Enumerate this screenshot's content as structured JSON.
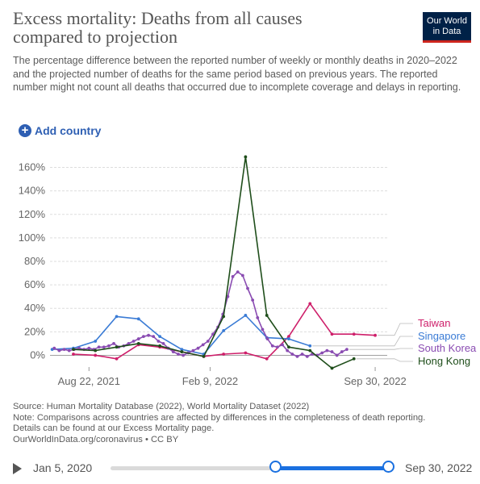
{
  "header": {
    "title": "Excess mortality: Deaths from all causes compared to projection",
    "subtitle": "The percentage difference between the reported number of weekly or monthly deaths in 2020–2022 and the projected number of deaths for the same period based on previous years. The reported number might not count all deaths that occurred due to incomplete coverage and delays in reporting.",
    "logo_line1": "Our World",
    "logo_line2": "in Data"
  },
  "controls": {
    "add_country_label": "Add country",
    "add_icon": "plus-circle-icon"
  },
  "chart_data": {
    "type": "line",
    "title": "Excess mortality: Deaths from all causes compared to projection",
    "ylim": [
      -10,
      170
    ],
    "yticks": [
      0,
      20,
      40,
      60,
      80,
      100,
      120,
      140,
      160
    ],
    "ytick_labels": [
      "0%",
      "20%",
      "40%",
      "60%",
      "80%",
      "100%",
      "120%",
      "140%",
      "160%"
    ],
    "xlim": [
      "2021-06-28",
      "2022-10-17"
    ],
    "xticks": [
      "2021-08-22",
      "2022-02-09",
      "2022-09-30"
    ],
    "xtick_labels": [
      "Aug 22, 2021",
      "Feb 9, 2022",
      "Sep 30, 2022"
    ],
    "grid": true,
    "legend_placement": "right",
    "series": [
      {
        "name": "Taiwan",
        "color": "#ce1f6a",
        "points": [
          [
            "2021-07-31",
            1
          ],
          [
            "2021-08-31",
            0
          ],
          [
            "2021-09-30",
            -3
          ],
          [
            "2021-10-31",
            9
          ],
          [
            "2021-11-30",
            7
          ],
          [
            "2021-12-31",
            3
          ],
          [
            "2022-01-31",
            -1
          ],
          [
            "2022-02-28",
            1
          ],
          [
            "2022-03-31",
            2
          ],
          [
            "2022-04-30",
            -3
          ],
          [
            "2022-05-31",
            16
          ],
          [
            "2022-06-30",
            44
          ],
          [
            "2022-07-31",
            18
          ],
          [
            "2022-08-31",
            18
          ],
          [
            "2022-09-30",
            17
          ]
        ]
      },
      {
        "name": "Singapore",
        "color": "#3a7bd5",
        "points": [
          [
            "2021-07-01",
            5
          ],
          [
            "2021-07-31",
            6
          ],
          [
            "2021-08-31",
            12
          ],
          [
            "2021-09-30",
            33
          ],
          [
            "2021-10-31",
            31
          ],
          [
            "2021-11-30",
            16
          ],
          [
            "2021-12-31",
            5
          ],
          [
            "2022-01-31",
            1
          ],
          [
            "2022-02-28",
            21
          ],
          [
            "2022-03-31",
            34
          ],
          [
            "2022-04-30",
            15
          ],
          [
            "2022-05-31",
            14
          ],
          [
            "2022-06-30",
            8
          ]
        ]
      },
      {
        "name": "South Korea",
        "color": "#8a4cb2",
        "points": [
          [
            "2021-07-04",
            6
          ],
          [
            "2021-07-11",
            4
          ],
          [
            "2021-07-18",
            5
          ],
          [
            "2021-07-25",
            4
          ],
          [
            "2021-08-01",
            5
          ],
          [
            "2021-08-08",
            6
          ],
          [
            "2021-08-15",
            5
          ],
          [
            "2021-08-22",
            6
          ],
          [
            "2021-08-29",
            5
          ],
          [
            "2021-09-05",
            7
          ],
          [
            "2021-09-12",
            7
          ],
          [
            "2021-09-19",
            8
          ],
          [
            "2021-09-26",
            10
          ],
          [
            "2021-10-03",
            7
          ],
          [
            "2021-10-10",
            8
          ],
          [
            "2021-10-17",
            10
          ],
          [
            "2021-10-24",
            12
          ],
          [
            "2021-10-31",
            14
          ],
          [
            "2021-11-07",
            16
          ],
          [
            "2021-11-14",
            17
          ],
          [
            "2021-11-21",
            16
          ],
          [
            "2021-11-28",
            12
          ],
          [
            "2021-12-05",
            10
          ],
          [
            "2021-12-12",
            6
          ],
          [
            "2021-12-19",
            3
          ],
          [
            "2021-12-26",
            1
          ],
          [
            "2022-01-02",
            0
          ],
          [
            "2022-01-09",
            2
          ],
          [
            "2022-01-16",
            4
          ],
          [
            "2022-01-23",
            6
          ],
          [
            "2022-01-30",
            9
          ],
          [
            "2022-02-06",
            12
          ],
          [
            "2022-02-13",
            18
          ],
          [
            "2022-02-20",
            24
          ],
          [
            "2022-02-27",
            35
          ],
          [
            "2022-03-06",
            50
          ],
          [
            "2022-03-13",
            67
          ],
          [
            "2022-03-20",
            71
          ],
          [
            "2022-03-27",
            68
          ],
          [
            "2022-04-03",
            57
          ],
          [
            "2022-04-10",
            47
          ],
          [
            "2022-04-17",
            32
          ],
          [
            "2022-04-24",
            22
          ],
          [
            "2022-05-01",
            14
          ],
          [
            "2022-05-08",
            8
          ],
          [
            "2022-05-15",
            7
          ],
          [
            "2022-05-22",
            9
          ],
          [
            "2022-05-29",
            4
          ],
          [
            "2022-06-05",
            1
          ],
          [
            "2022-06-12",
            -1
          ],
          [
            "2022-06-19",
            1
          ],
          [
            "2022-06-26",
            -1
          ],
          [
            "2022-07-03",
            1
          ],
          [
            "2022-07-10",
            0
          ],
          [
            "2022-07-17",
            2
          ],
          [
            "2022-07-24",
            4
          ],
          [
            "2022-07-31",
            3
          ],
          [
            "2022-08-07",
            0
          ],
          [
            "2022-08-14",
            3
          ],
          [
            "2022-08-21",
            5
          ]
        ]
      },
      {
        "name": "Hong Kong",
        "color": "#1f4e1b",
        "points": [
          [
            "2021-07-31",
            5
          ],
          [
            "2021-08-31",
            4
          ],
          [
            "2021-09-30",
            7
          ],
          [
            "2021-10-31",
            10
          ],
          [
            "2021-11-30",
            8
          ],
          [
            "2021-12-31",
            3
          ],
          [
            "2022-01-31",
            -1
          ],
          [
            "2022-02-28",
            33
          ],
          [
            "2022-03-31",
            169
          ],
          [
            "2022-04-30",
            34
          ],
          [
            "2022-05-31",
            7
          ],
          [
            "2022-06-30",
            4
          ],
          [
            "2022-07-31",
            -11
          ],
          [
            "2022-08-31",
            -3
          ]
        ]
      }
    ]
  },
  "footer": {
    "source": "Source: Human Mortality Database (2022), World Mortality Dataset (2022)",
    "note_line1": "Note: Comparisons across countries are affected by differences in the completeness of death reporting.",
    "note_line2": "Details can be found at our Excess Mortality page.",
    "license": "OurWorldInData.org/coronavirus • CC BY"
  },
  "timeline": {
    "start_label": "Jan 5, 2020",
    "end_label": "Sep 30, 2022",
    "play_icon": "play-icon",
    "range_start_fraction": 0.59,
    "range_end_fraction": 1.0
  }
}
